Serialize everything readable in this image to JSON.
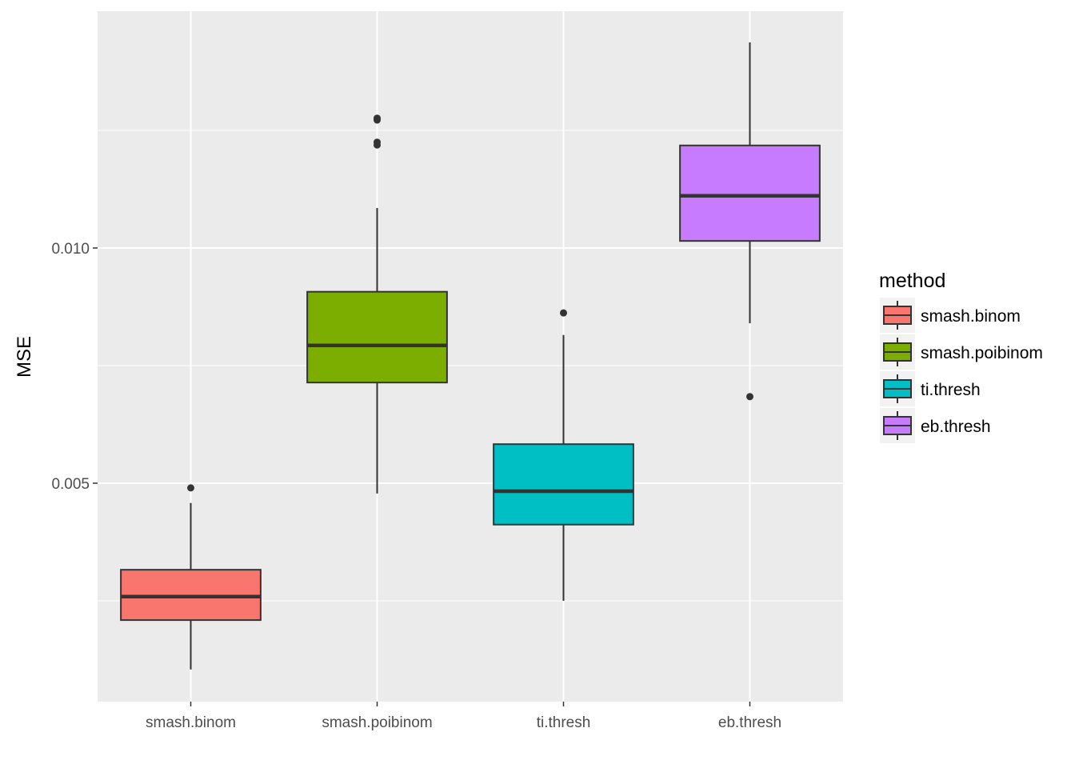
{
  "chart_data": {
    "type": "boxplot",
    "title": "",
    "xlabel": "",
    "ylabel": "MSE",
    "ylim": [
      0.000357,
      0.015034
    ],
    "y_ticks": [
      {
        "value": 0.005,
        "label": "0.005"
      },
      {
        "value": 0.01,
        "label": "0.010"
      }
    ],
    "y_minor_gridlines": [
      0.0025,
      0.0075,
      0.0125
    ],
    "grid": true,
    "categories": [
      "smash.binom",
      "smash.poibinom",
      "ti.thresh",
      "eb.thresh"
    ],
    "series": [
      {
        "name": "smash.binom",
        "color": "#F8766D",
        "lower_whisker": 0.00104,
        "q1": 0.00209,
        "median": 0.00259,
        "q3": 0.00316,
        "upper_whisker": 0.00458,
        "outliers": [
          0.0049
        ]
      },
      {
        "name": "smash.poibinom",
        "color": "#7CAE00",
        "lower_whisker": 0.00478,
        "q1": 0.00714,
        "median": 0.00793,
        "q3": 0.00907,
        "upper_whisker": 0.01085,
        "outliers": [
          0.01219,
          0.01225,
          0.01272,
          0.01276
        ]
      },
      {
        "name": "ti.thresh",
        "color": "#00BFC4",
        "lower_whisker": 0.0025,
        "q1": 0.00412,
        "median": 0.00483,
        "q3": 0.00583,
        "upper_whisker": 0.00815,
        "outliers": [
          0.00862
        ]
      },
      {
        "name": "eb.thresh",
        "color": "#C77CFF",
        "lower_whisker": 0.0084,
        "q1": 0.01015,
        "median": 0.01111,
        "q3": 0.01218,
        "upper_whisker": 0.01437,
        "outliers": [
          0.00684
        ]
      }
    ],
    "legend": {
      "title": "method",
      "position": "right",
      "entries": [
        "smash.binom",
        "smash.poibinom",
        "ti.thresh",
        "eb.thresh"
      ]
    }
  },
  "colors": {
    "panel_bg": "#EBEBEB",
    "grid": "#FFFFFF",
    "outline": "#333333",
    "axis_text": "#4D4D4D"
  }
}
